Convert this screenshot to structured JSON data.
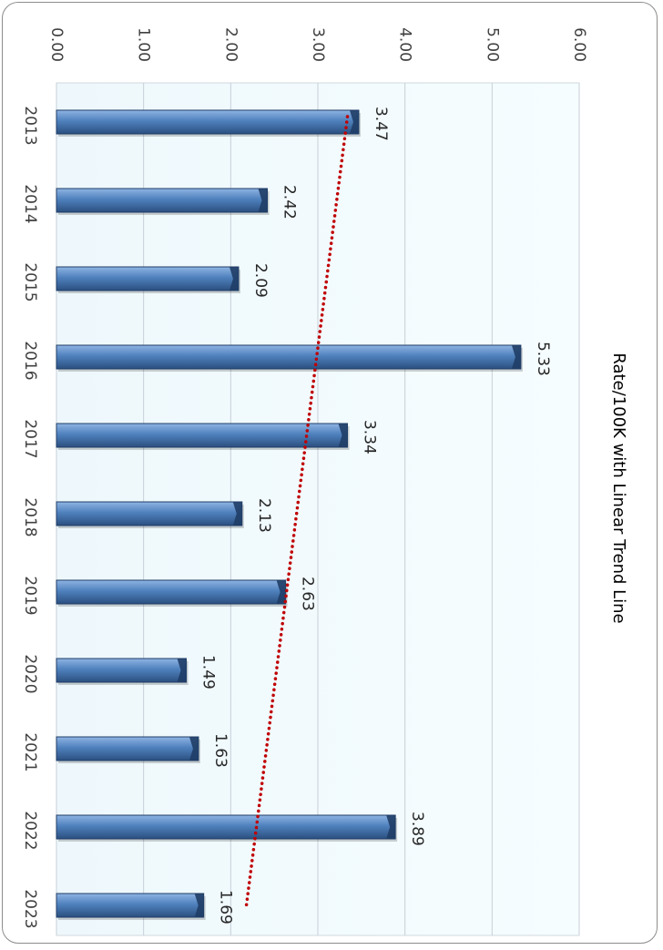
{
  "chart_data": {
    "type": "bar",
    "title": "Rate/100K with Linear Trend Line",
    "categories": [
      "2013",
      "2014",
      "2015",
      "2016",
      "2017",
      "2018",
      "2019",
      "2020",
      "2021",
      "2022",
      "2023"
    ],
    "values": [
      3.47,
      2.42,
      2.09,
      5.33,
      3.34,
      2.13,
      2.63,
      1.49,
      1.63,
      3.89,
      1.69
    ],
    "value_labels": [
      "3.47",
      "2.42",
      "2.09",
      "5.33",
      "3.34",
      "2.13",
      "2.63",
      "1.49",
      "1.63",
      "3.89",
      "1.69"
    ],
    "value_axis_ticks": [
      "0.00",
      "1.00",
      "2.00",
      "3.00",
      "4.00",
      "5.00",
      "6.00"
    ],
    "ylim": [
      0,
      6
    ],
    "xlabel": "",
    "ylabel": "",
    "grid": true,
    "legend": "none",
    "orientation": "rotated 90 degrees clockwise (bars grow rightward, categories top-to-bottom)",
    "trend_line": {
      "type": "linear",
      "style": "dotted",
      "color": "#c00000",
      "start": 3.34,
      "end": 2.18
    },
    "colors": {
      "bar": "#4f81bd",
      "bar_dark": "#1f3d66",
      "plot_background": "#f2fbff",
      "gridline": "#c8d0d8",
      "trend": "#c00000"
    }
  }
}
